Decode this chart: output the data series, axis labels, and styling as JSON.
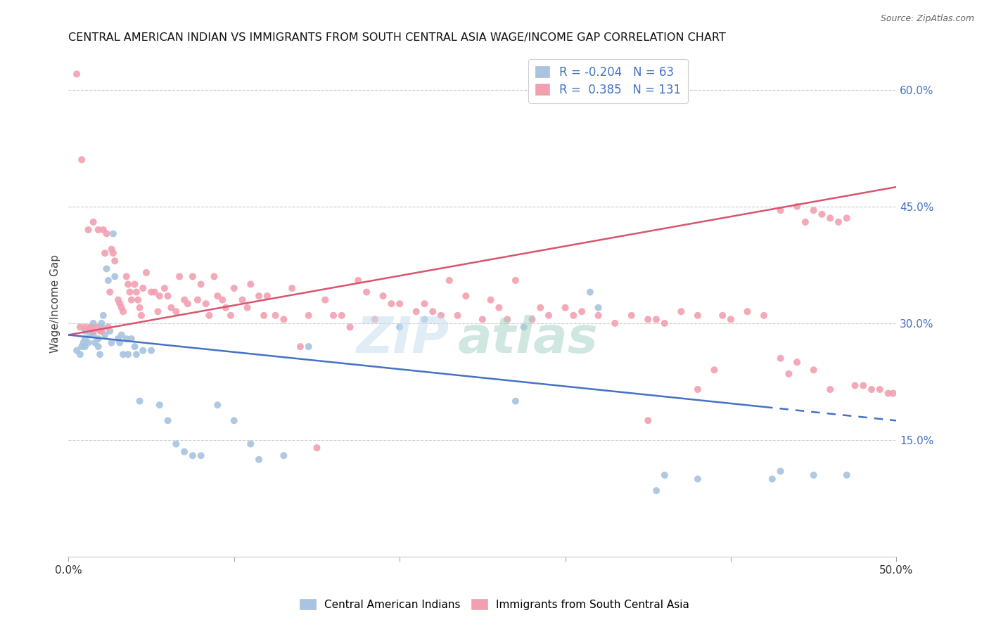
{
  "title": "CENTRAL AMERICAN INDIAN VS IMMIGRANTS FROM SOUTH CENTRAL ASIA WAGE/INCOME GAP CORRELATION CHART",
  "source": "Source: ZipAtlas.com",
  "ylabel": "Wage/Income Gap",
  "xlim": [
    0.0,
    0.5
  ],
  "ylim": [
    0.0,
    0.65
  ],
  "ytick_labels_right": [
    "15.0%",
    "30.0%",
    "45.0%",
    "60.0%"
  ],
  "ytick_values_right": [
    0.15,
    0.3,
    0.45,
    0.6
  ],
  "blue_color": "#a8c4e0",
  "pink_color": "#f2a0b0",
  "blue_line_color": "#4472c4",
  "pink_line_color": "#d9546e",
  "legend_blue_R": "-0.204",
  "legend_blue_N": "63",
  "legend_pink_R": "0.385",
  "legend_pink_N": "131",
  "blue_line_x_start": 0.0,
  "blue_line_x_solid_end": 0.42,
  "blue_line_x_dash_end": 0.5,
  "blue_line_y_at_0": 0.285,
  "blue_line_y_at_end": 0.175,
  "pink_line_x_start": 0.0,
  "pink_line_x_end": 0.5,
  "pink_line_y_at_0": 0.285,
  "pink_line_y_at_end": 0.475,
  "blue_x": [
    0.005,
    0.007,
    0.008,
    0.009,
    0.01,
    0.01,
    0.01,
    0.012,
    0.013,
    0.014,
    0.015,
    0.015,
    0.016,
    0.018,
    0.018,
    0.019,
    0.02,
    0.02,
    0.021,
    0.022,
    0.023,
    0.024,
    0.025,
    0.026,
    0.027,
    0.028,
    0.03,
    0.031,
    0.032,
    0.033,
    0.035,
    0.036,
    0.038,
    0.04,
    0.041,
    0.043,
    0.045,
    0.05,
    0.055,
    0.06,
    0.065,
    0.07,
    0.075,
    0.08,
    0.09,
    0.1,
    0.11,
    0.115,
    0.13,
    0.145,
    0.2,
    0.215,
    0.27,
    0.275,
    0.315,
    0.32,
    0.355,
    0.36,
    0.38,
    0.425,
    0.43,
    0.45,
    0.47
  ],
  "blue_y": [
    0.265,
    0.26,
    0.27,
    0.275,
    0.29,
    0.27,
    0.28,
    0.275,
    0.285,
    0.295,
    0.3,
    0.285,
    0.275,
    0.28,
    0.27,
    0.26,
    0.3,
    0.295,
    0.31,
    0.285,
    0.37,
    0.355,
    0.29,
    0.275,
    0.415,
    0.36,
    0.28,
    0.275,
    0.285,
    0.26,
    0.28,
    0.26,
    0.28,
    0.27,
    0.26,
    0.2,
    0.265,
    0.265,
    0.195,
    0.175,
    0.145,
    0.135,
    0.13,
    0.13,
    0.195,
    0.175,
    0.145,
    0.125,
    0.13,
    0.27,
    0.295,
    0.305,
    0.2,
    0.295,
    0.34,
    0.32,
    0.085,
    0.105,
    0.1,
    0.1,
    0.11,
    0.105,
    0.105
  ],
  "pink_x": [
    0.005,
    0.007,
    0.008,
    0.01,
    0.012,
    0.013,
    0.015,
    0.015,
    0.017,
    0.018,
    0.019,
    0.02,
    0.021,
    0.022,
    0.023,
    0.024,
    0.025,
    0.026,
    0.027,
    0.028,
    0.03,
    0.031,
    0.032,
    0.033,
    0.035,
    0.036,
    0.037,
    0.038,
    0.04,
    0.041,
    0.042,
    0.043,
    0.044,
    0.045,
    0.047,
    0.05,
    0.052,
    0.054,
    0.055,
    0.058,
    0.06,
    0.062,
    0.065,
    0.067,
    0.07,
    0.072,
    0.075,
    0.078,
    0.08,
    0.083,
    0.085,
    0.088,
    0.09,
    0.093,
    0.095,
    0.098,
    0.1,
    0.105,
    0.108,
    0.11,
    0.115,
    0.118,
    0.12,
    0.125,
    0.13,
    0.135,
    0.14,
    0.145,
    0.15,
    0.155,
    0.16,
    0.165,
    0.17,
    0.175,
    0.18,
    0.185,
    0.19,
    0.195,
    0.2,
    0.21,
    0.215,
    0.22,
    0.225,
    0.23,
    0.235,
    0.24,
    0.25,
    0.255,
    0.26,
    0.265,
    0.27,
    0.28,
    0.285,
    0.29,
    0.3,
    0.305,
    0.31,
    0.32,
    0.33,
    0.34,
    0.35,
    0.355,
    0.36,
    0.37,
    0.38,
    0.39,
    0.395,
    0.4,
    0.41,
    0.42,
    0.43,
    0.435,
    0.44,
    0.445,
    0.45,
    0.455,
    0.46,
    0.465,
    0.47,
    0.475,
    0.48,
    0.485,
    0.49,
    0.495,
    0.498,
    0.43,
    0.44,
    0.45,
    0.46,
    0.35,
    0.38
  ],
  "pink_y": [
    0.62,
    0.295,
    0.51,
    0.295,
    0.42,
    0.295,
    0.43,
    0.29,
    0.295,
    0.42,
    0.29,
    0.29,
    0.42,
    0.39,
    0.415,
    0.295,
    0.34,
    0.395,
    0.39,
    0.38,
    0.33,
    0.325,
    0.32,
    0.315,
    0.36,
    0.35,
    0.34,
    0.33,
    0.35,
    0.34,
    0.33,
    0.32,
    0.31,
    0.345,
    0.365,
    0.34,
    0.34,
    0.315,
    0.335,
    0.345,
    0.335,
    0.32,
    0.315,
    0.36,
    0.33,
    0.325,
    0.36,
    0.33,
    0.35,
    0.325,
    0.31,
    0.36,
    0.335,
    0.33,
    0.32,
    0.31,
    0.345,
    0.33,
    0.32,
    0.35,
    0.335,
    0.31,
    0.335,
    0.31,
    0.305,
    0.345,
    0.27,
    0.31,
    0.14,
    0.33,
    0.31,
    0.31,
    0.295,
    0.355,
    0.34,
    0.305,
    0.335,
    0.325,
    0.325,
    0.315,
    0.325,
    0.315,
    0.31,
    0.355,
    0.31,
    0.335,
    0.305,
    0.33,
    0.32,
    0.305,
    0.355,
    0.305,
    0.32,
    0.31,
    0.32,
    0.31,
    0.315,
    0.31,
    0.3,
    0.31,
    0.305,
    0.305,
    0.3,
    0.315,
    0.31,
    0.24,
    0.31,
    0.305,
    0.315,
    0.31,
    0.445,
    0.235,
    0.45,
    0.43,
    0.445,
    0.44,
    0.435,
    0.43,
    0.435,
    0.22,
    0.22,
    0.215,
    0.215,
    0.21,
    0.21,
    0.255,
    0.25,
    0.24,
    0.215,
    0.175,
    0.215
  ]
}
